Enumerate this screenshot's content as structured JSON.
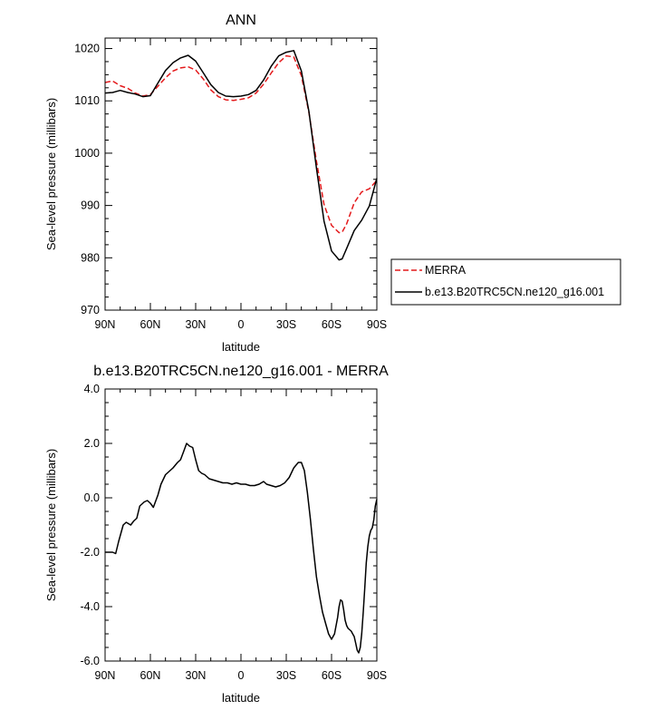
{
  "chart_data": [
    {
      "type": "line",
      "title": "ANN",
      "xlabel": "latitude",
      "ylabel": "Sea-level pressure (millibars)",
      "xticks": [
        {
          "lat": 90,
          "label": "90N"
        },
        {
          "lat": 60,
          "label": "60N"
        },
        {
          "lat": 30,
          "label": "30N"
        },
        {
          "lat": 0,
          "label": "0"
        },
        {
          "lat": -30,
          "label": "30S"
        },
        {
          "lat": -60,
          "label": "60S"
        },
        {
          "lat": -90,
          "label": "90S"
        }
      ],
      "yticks": [
        970,
        980,
        990,
        1000,
        1010,
        1020
      ],
      "ylim": [
        970,
        1022
      ],
      "legend_position": "right",
      "series": [
        {
          "name": "MERRA",
          "color": "#e41a1c",
          "style": "dashed",
          "x": [
            90,
            85,
            80,
            75,
            70,
            65,
            60,
            55,
            50,
            45,
            40,
            35,
            30,
            25,
            20,
            15,
            10,
            5,
            0,
            -5,
            -10,
            -15,
            -20,
            -25,
            -30,
            -35,
            -40,
            -45,
            -50,
            -55,
            -60,
            -65,
            -67,
            -70,
            -75,
            -80,
            -85,
            -90
          ],
          "y": [
            1013.5,
            1013.8,
            1012.9,
            1012.4,
            1011.5,
            1010.9,
            1011.2,
            1012.8,
            1014.4,
            1015.7,
            1016.3,
            1016.5,
            1015.9,
            1014.2,
            1012.1,
            1010.8,
            1010.2,
            1010.1,
            1010.3,
            1010.6,
            1011.5,
            1013.2,
            1015.3,
            1017.3,
            1018.6,
            1018.4,
            1014.8,
            1007.8,
            998.5,
            990.2,
            986.2,
            984.8,
            984.9,
            986.5,
            990.5,
            992.6,
            993.2,
            994.8
          ]
        },
        {
          "name": "b.e13.B20TRC5CN.ne120_g16.001",
          "color": "#000000",
          "style": "solid",
          "x": [
            90,
            85,
            80,
            75,
            70,
            65,
            60,
            55,
            50,
            45,
            40,
            35,
            30,
            25,
            20,
            15,
            10,
            5,
            0,
            -5,
            -10,
            -15,
            -20,
            -25,
            -30,
            -35,
            -40,
            -45,
            -50,
            -55,
            -60,
            -65,
            -67,
            -70,
            -75,
            -80,
            -85,
            -90
          ],
          "y": [
            1011.5,
            1011.6,
            1012.0,
            1011.6,
            1011.3,
            1010.8,
            1011.0,
            1013.4,
            1015.8,
            1017.3,
            1018.2,
            1018.7,
            1017.6,
            1015.4,
            1013.1,
            1011.6,
            1010.9,
            1010.8,
            1010.9,
            1011.2,
            1012.0,
            1014.0,
            1016.6,
            1018.6,
            1019.3,
            1019.6,
            1015.7,
            1008.0,
            997.2,
            987.0,
            981.3,
            979.6,
            979.8,
            981.8,
            985.2,
            987.2,
            989.9,
            995.2
          ]
        }
      ]
    },
    {
      "type": "line",
      "title": "b.e13.B20TRC5CN.ne120_g16.001 - MERRA",
      "xlabel": "latitude",
      "ylabel": "Sea-level pressure (millibars)",
      "xticks": [
        {
          "lat": 90,
          "label": "90N"
        },
        {
          "lat": 60,
          "label": "60N"
        },
        {
          "lat": 30,
          "label": "30N"
        },
        {
          "lat": 0,
          "label": "0"
        },
        {
          "lat": -30,
          "label": "30S"
        },
        {
          "lat": -60,
          "label": "60S"
        },
        {
          "lat": -90,
          "label": "90S"
        }
      ],
      "yticks": [
        {
          "value": -6,
          "label": "-6.0"
        },
        {
          "value": -4,
          "label": "-4.0"
        },
        {
          "value": -2,
          "label": "-2.0"
        },
        {
          "value": 0,
          "label": "0.0"
        },
        {
          "value": 2,
          "label": "2.0"
        },
        {
          "value": 4,
          "label": "4.0"
        }
      ],
      "ylim": [
        -6,
        4
      ],
      "series": [
        {
          "color": "#000000",
          "style": "solid",
          "x": [
            90,
            87,
            85,
            83,
            81,
            78,
            76,
            73,
            71,
            69,
            67,
            64,
            62,
            60,
            58,
            55,
            53,
            50,
            47,
            45,
            42,
            40,
            38,
            36,
            34,
            32,
            30,
            28,
            26,
            24,
            21,
            18,
            15,
            12,
            9,
            6,
            3,
            0,
            -3,
            -6,
            -9,
            -12,
            -15,
            -17,
            -20,
            -23,
            -26,
            -29,
            -32,
            -35,
            -38,
            -40,
            -42,
            -44,
            -46,
            -48,
            -50,
            -52,
            -54,
            -56,
            -58,
            -60,
            -62,
            -64,
            -65,
            -66,
            -67,
            -68,
            -69,
            -70,
            -71,
            -72,
            -73,
            -74,
            -75,
            -76,
            -77,
            -78,
            -79,
            -80,
            -81,
            -82,
            -83,
            -84,
            -85,
            -86,
            -87,
            -88,
            -89,
            -90
          ],
          "y": [
            -2.0,
            -2.0,
            -2.0,
            -2.05,
            -1.6,
            -1.0,
            -0.9,
            -1.0,
            -0.85,
            -0.75,
            -0.3,
            -0.15,
            -0.1,
            -0.2,
            -0.35,
            0.1,
            0.5,
            0.85,
            1.0,
            1.1,
            1.3,
            1.4,
            1.7,
            2.0,
            1.9,
            1.85,
            1.4,
            1.0,
            0.9,
            0.85,
            0.7,
            0.65,
            0.6,
            0.55,
            0.55,
            0.5,
            0.55,
            0.5,
            0.5,
            0.45,
            0.45,
            0.5,
            0.6,
            0.5,
            0.45,
            0.4,
            0.45,
            0.55,
            0.75,
            1.1,
            1.3,
            1.3,
            1.0,
            0.2,
            -0.8,
            -1.9,
            -2.9,
            -3.6,
            -4.2,
            -4.6,
            -5.0,
            -5.2,
            -5.0,
            -4.4,
            -4.0,
            -3.75,
            -3.8,
            -4.1,
            -4.5,
            -4.7,
            -4.8,
            -4.85,
            -4.9,
            -5.0,
            -5.1,
            -5.35,
            -5.6,
            -5.7,
            -5.5,
            -5.0,
            -4.2,
            -3.3,
            -2.4,
            -1.8,
            -1.4,
            -1.2,
            -1.1,
            -0.8,
            -0.3,
            -0.05
          ]
        }
      ]
    }
  ]
}
